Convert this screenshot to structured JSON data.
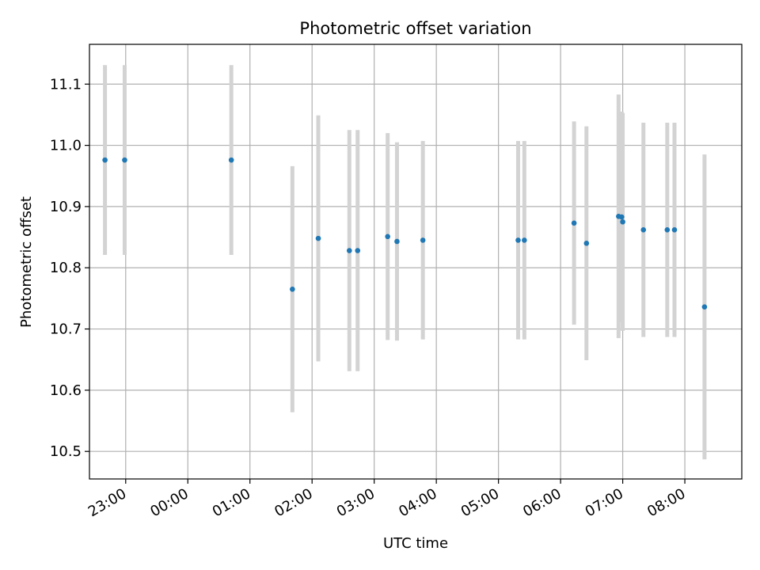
{
  "chart_data": {
    "type": "scatter",
    "title": "Photometric offset variation",
    "xlabel": "UTC time",
    "ylabel": "Photometric offset",
    "x_unit": "hours UTC (24+ = next day)",
    "xlim": [
      "22:25",
      "08:55"
    ],
    "ylim": [
      10.455,
      11.165
    ],
    "grid": true,
    "x_ticks": [
      "23:00",
      "00:00",
      "01:00",
      "02:00",
      "03:00",
      "04:00",
      "05:00",
      "06:00",
      "07:00",
      "08:00"
    ],
    "y_ticks": [
      "10.5",
      "10.6",
      "10.7",
      "10.8",
      "10.9",
      "11.0",
      "11.1"
    ],
    "colors": {
      "point": "#1f77b4",
      "errorbar": "#d3d3d3",
      "grid": "#b0b0b0"
    },
    "series": [
      {
        "points": [
          {
            "x": "22:40",
            "y": 10.976,
            "ylo": 10.821,
            "yhi": 11.131
          },
          {
            "x": "22:59",
            "y": 10.976,
            "ylo": 10.821,
            "yhi": 11.131
          },
          {
            "x": "00:42",
            "y": 10.976,
            "ylo": 10.821,
            "yhi": 11.131
          },
          {
            "x": "01:41",
            "y": 10.765,
            "ylo": 10.564,
            "yhi": 10.966
          },
          {
            "x": "02:06",
            "y": 10.848,
            "ylo": 10.647,
            "yhi": 11.049
          },
          {
            "x": "02:36",
            "y": 10.828,
            "ylo": 10.631,
            "yhi": 11.025
          },
          {
            "x": "02:44",
            "y": 10.828,
            "ylo": 10.631,
            "yhi": 11.025
          },
          {
            "x": "03:13",
            "y": 10.851,
            "ylo": 10.682,
            "yhi": 11.02
          },
          {
            "x": "03:22",
            "y": 10.843,
            "ylo": 10.681,
            "yhi": 11.005
          },
          {
            "x": "03:47",
            "y": 10.845,
            "ylo": 10.683,
            "yhi": 11.007
          },
          {
            "x": "05:19",
            "y": 10.845,
            "ylo": 10.683,
            "yhi": 11.007
          },
          {
            "x": "05:25",
            "y": 10.845,
            "ylo": 10.683,
            "yhi": 11.007
          },
          {
            "x": "06:13",
            "y": 10.873,
            "ylo": 10.707,
            "yhi": 11.039
          },
          {
            "x": "06:25",
            "y": 10.84,
            "ylo": 10.649,
            "yhi": 11.031
          },
          {
            "x": "06:56",
            "y": 10.884,
            "ylo": 10.685,
            "yhi": 11.083
          },
          {
            "x": "06:59",
            "y": 10.883,
            "ylo": 10.711,
            "yhi": 11.055
          },
          {
            "x": "07:00",
            "y": 10.875,
            "ylo": 10.697,
            "yhi": 11.053
          },
          {
            "x": "07:20",
            "y": 10.862,
            "ylo": 10.687,
            "yhi": 11.037
          },
          {
            "x": "07:43",
            "y": 10.862,
            "ylo": 10.687,
            "yhi": 11.037
          },
          {
            "x": "07:50",
            "y": 10.862,
            "ylo": 10.687,
            "yhi": 11.037
          },
          {
            "x": "08:19",
            "y": 10.736,
            "ylo": 10.487,
            "yhi": 10.985
          }
        ]
      }
    ]
  }
}
